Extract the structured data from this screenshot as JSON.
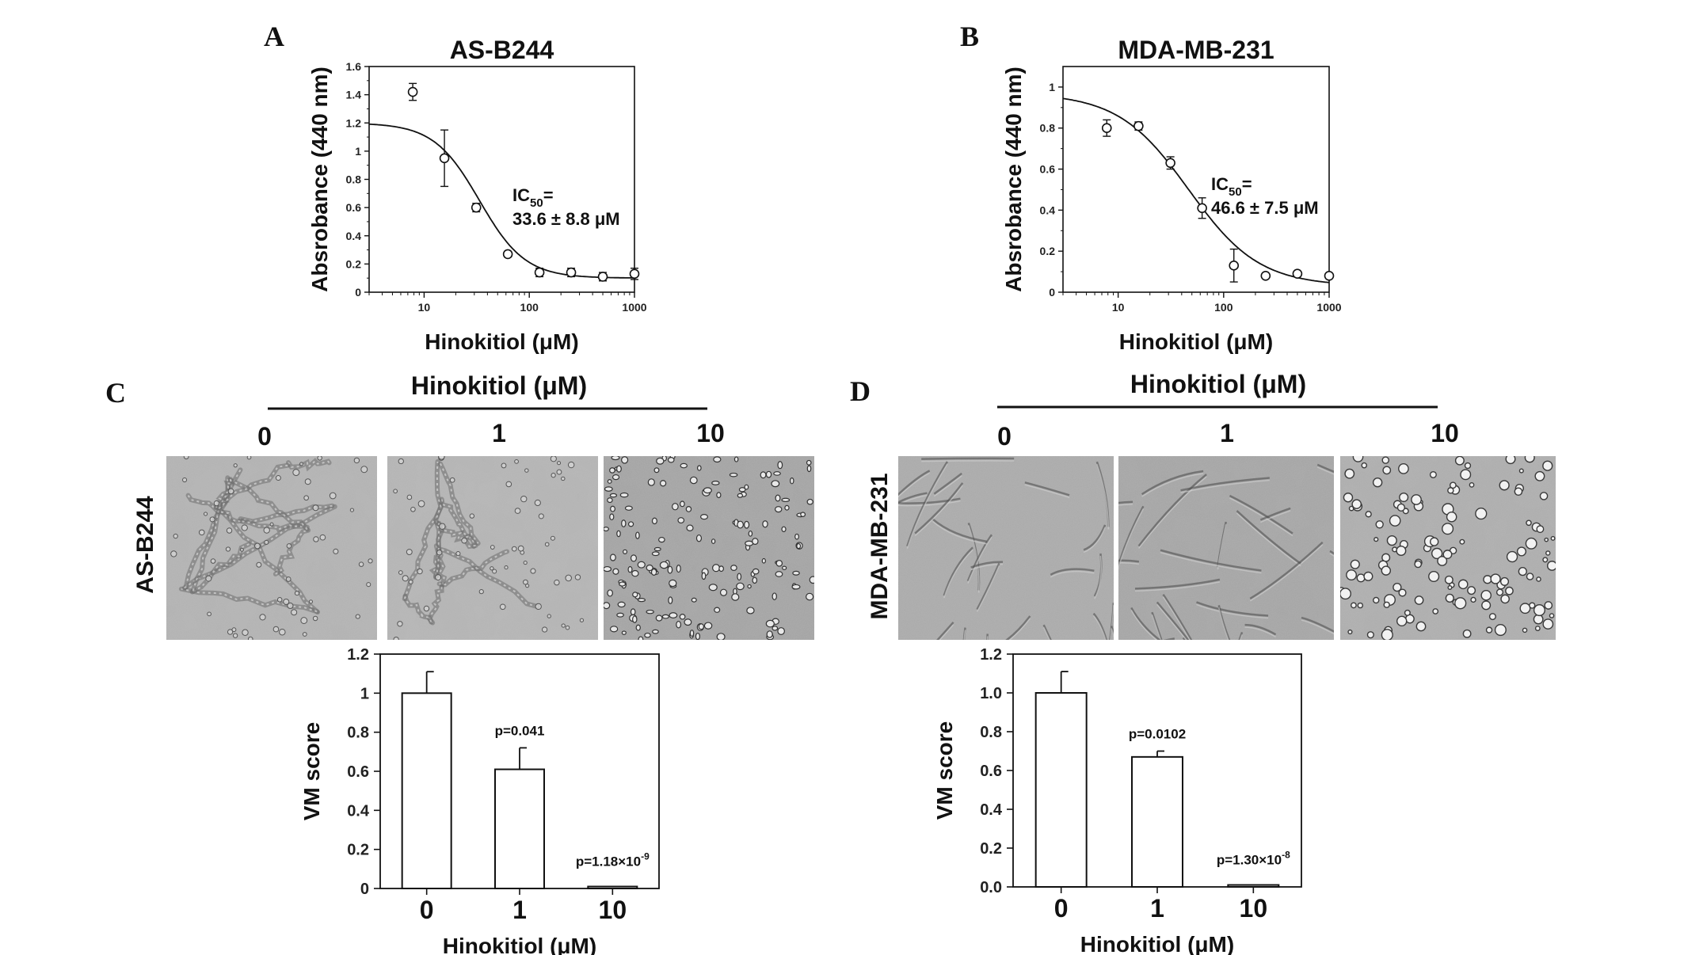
{
  "panels": {
    "A": "A",
    "B": "B",
    "C": "C",
    "D": "D"
  },
  "micrographs": {
    "header": "Hinokitiol (μM)",
    "concentrations": [
      "0",
      "1",
      "10"
    ],
    "C_cell_line": "AS-B244",
    "D_cell_line": "MDA-MB-231"
  },
  "chart_data": [
    {
      "id": "A",
      "type": "scatter",
      "title": "AS-B244",
      "xlabel": "Hinokitiol (μM)",
      "ylabel": "Absrobance (440 nm)",
      "xscale": "log",
      "xlim": [
        3,
        1000
      ],
      "ylim": [
        0,
        1.6
      ],
      "xticks": [
        "10",
        "100",
        "1000"
      ],
      "yticks": [
        "0",
        "0.2",
        "0.4",
        "0.6",
        "0.8",
        "1",
        "1.2",
        "1.4",
        "1.6"
      ],
      "points": [
        {
          "x": 7.8,
          "y": 1.42,
          "err": 0.06
        },
        {
          "x": 15.6,
          "y": 0.95,
          "err": 0.2
        },
        {
          "x": 31.3,
          "y": 0.6,
          "err": 0.03
        },
        {
          "x": 62.5,
          "y": 0.27,
          "err": 0.02
        },
        {
          "x": 125,
          "y": 0.14,
          "err": 0.03
        },
        {
          "x": 250,
          "y": 0.14,
          "err": 0.03
        },
        {
          "x": 500,
          "y": 0.11,
          "err": 0.03
        },
        {
          "x": 1000,
          "y": 0.13,
          "err": 0.04
        }
      ],
      "fit": {
        "top": 1.2,
        "bottom": 0.1,
        "ic50": 33.6,
        "hill": 2.0
      },
      "annotation": {
        "line1": "IC",
        "sub": "50",
        "eq": "=",
        "line2": "33.6 ± 8.8 μM"
      }
    },
    {
      "id": "B",
      "type": "scatter",
      "title": "MDA-MB-231",
      "xlabel": "Hinokitiol (μM)",
      "ylabel": "Absrobance (440 nm)",
      "xscale": "log",
      "xlim": [
        3,
        1000
      ],
      "ylim": [
        0,
        1.1
      ],
      "xticks": [
        "10",
        "100",
        "1000"
      ],
      "yticks": [
        "0",
        "0.2",
        "0.4",
        "0.6",
        "0.8",
        "1"
      ],
      "points": [
        {
          "x": 7.8,
          "y": 0.8,
          "err": 0.04
        },
        {
          "x": 15.6,
          "y": 0.81,
          "err": 0.02
        },
        {
          "x": 31.3,
          "y": 0.63,
          "err": 0.03
        },
        {
          "x": 62.5,
          "y": 0.41,
          "err": 0.05
        },
        {
          "x": 125,
          "y": 0.13,
          "err": 0.08
        },
        {
          "x": 250,
          "y": 0.08,
          "err": 0.01
        },
        {
          "x": 500,
          "y": 0.09,
          "err": 0.01
        },
        {
          "x": 1000,
          "y": 0.08,
          "err": 0.01
        }
      ],
      "fit": {
        "top": 0.97,
        "bottom": 0.03,
        "ic50": 46.6,
        "hill": 1.3
      },
      "annotation": {
        "line1": "IC",
        "sub": "50",
        "eq": "=",
        "line2": "46.6 ± 7.5 μM"
      }
    },
    {
      "id": "C",
      "type": "bar",
      "xlabel": "Hinokitiol (μM)",
      "ylabel": "VM score",
      "categories": [
        "0",
        "1",
        "10"
      ],
      "values": [
        1.0,
        0.61,
        0.01
      ],
      "errors": [
        0.11,
        0.11,
        0.0
      ],
      "ylim": [
        0,
        1.2
      ],
      "yticks": [
        "0",
        "0.2",
        "0.4",
        "0.6",
        "0.8",
        "1",
        "1.2"
      ],
      "pvalues": [
        {
          "index": 1,
          "text": "p=0.041",
          "base": "",
          "exp": ""
        },
        {
          "index": 2,
          "text": "",
          "base": "p=1.18×10",
          "exp": "-9"
        }
      ]
    },
    {
      "id": "D",
      "type": "bar",
      "xlabel": "Hinokitiol (μM)",
      "ylabel": "VM score",
      "categories": [
        "0",
        "1",
        "10"
      ],
      "values": [
        1.0,
        0.67,
        0.01
      ],
      "errors": [
        0.11,
        0.03,
        0.0
      ],
      "ylim": [
        0,
        1.2
      ],
      "yticks": [
        "0.0",
        "0.2",
        "0.4",
        "0.6",
        "0.8",
        "1.0",
        "1.2"
      ],
      "pvalues": [
        {
          "index": 1,
          "text": "p=0.0102",
          "base": "",
          "exp": ""
        },
        {
          "index": 2,
          "text": "",
          "base": "p=1.30×10",
          "exp": "-8"
        }
      ]
    }
  ]
}
